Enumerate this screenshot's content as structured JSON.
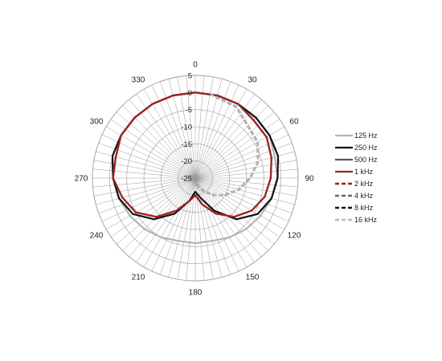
{
  "chart_data": {
    "type": "polar-line",
    "title": "",
    "radial_axis": {
      "range": [
        -25,
        5
      ],
      "ticks": [
        "5",
        "0",
        "-5",
        "-10",
        "-15",
        "-20",
        "-25"
      ],
      "tick_values": [
        5,
        0,
        -5,
        -10,
        -15,
        -20,
        -25
      ]
    },
    "angular_axis": {
      "labels": [
        "0",
        "30",
        "60",
        "90",
        "120",
        "150",
        "180",
        "210",
        "240",
        "270",
        "300",
        "330"
      ],
      "label_angles": [
        0,
        30,
        60,
        90,
        120,
        150,
        180,
        210,
        240,
        270,
        300,
        330
      ],
      "grid_step_deg": 5
    },
    "legend_position": "right",
    "grid": true,
    "series": [
      {
        "name": "125 Hz",
        "color": "#b3b3b3",
        "dash": "solid",
        "width": 2.2,
        "points": [
          [
            0,
            0
          ],
          [
            15,
            0
          ],
          [
            30,
            0
          ],
          [
            45,
            0
          ],
          [
            60,
            0
          ],
          [
            75,
            -1
          ],
          [
            90,
            -1
          ],
          [
            105,
            -2
          ],
          [
            120,
            -3
          ],
          [
            135,
            -4
          ],
          [
            150,
            -5
          ],
          [
            165,
            -6
          ],
          [
            180,
            -6
          ],
          [
            195,
            -6
          ],
          [
            210,
            -5
          ],
          [
            225,
            -4
          ],
          [
            240,
            -3
          ],
          [
            255,
            -2
          ],
          [
            270,
            -1
          ],
          [
            285,
            -1
          ],
          [
            300,
            0
          ],
          [
            315,
            0
          ],
          [
            330,
            0
          ],
          [
            345,
            0
          ],
          [
            360,
            0
          ]
        ]
      },
      {
        "name": "250 Hz",
        "color": "#111111",
        "dash": "solid",
        "width": 2.2,
        "points": [
          [
            0,
            0
          ],
          [
            15,
            0
          ],
          [
            30,
            0
          ],
          [
            45,
            0
          ],
          [
            60,
            0
          ],
          [
            75,
            0
          ],
          [
            90,
            -1
          ],
          [
            105,
            -2
          ],
          [
            120,
            -4
          ],
          [
            135,
            -8
          ],
          [
            150,
            -14
          ],
          [
            165,
            -19
          ],
          [
            180,
            -21
          ],
          [
            195,
            -18
          ],
          [
            210,
            -13
          ],
          [
            225,
            -8
          ],
          [
            240,
            -4
          ],
          [
            255,
            -2
          ],
          [
            270,
            -1
          ],
          [
            285,
            0
          ],
          [
            300,
            0
          ],
          [
            315,
            0
          ],
          [
            330,
            0
          ],
          [
            345,
            0
          ],
          [
            360,
            0
          ]
        ]
      },
      {
        "name": "500 Hz",
        "color": "#555555",
        "dash": "solid",
        "width": 2.2,
        "points": [
          [
            0,
            0
          ],
          [
            15,
            0
          ],
          [
            30,
            0
          ],
          [
            45,
            -1
          ],
          [
            60,
            -1
          ],
          [
            75,
            -2
          ],
          [
            90,
            -3
          ],
          [
            105,
            -4
          ],
          [
            120,
            -6
          ],
          [
            135,
            -9
          ],
          [
            150,
            -13
          ],
          [
            165,
            -17
          ],
          [
            180,
            -20
          ],
          [
            195,
            -18
          ],
          [
            210,
            -14
          ],
          [
            225,
            -9
          ],
          [
            240,
            -5
          ],
          [
            255,
            -3
          ],
          [
            270,
            -1
          ],
          [
            285,
            -1
          ],
          [
            300,
            0
          ],
          [
            315,
            0
          ],
          [
            330,
            0
          ],
          [
            345,
            0
          ],
          [
            360,
            0
          ]
        ]
      },
      {
        "name": "1 kHz",
        "color": "#a31f1f",
        "dash": "solid",
        "width": 2.2,
        "points": [
          [
            0,
            0
          ],
          [
            15,
            0
          ],
          [
            30,
            0
          ],
          [
            45,
            -1
          ],
          [
            60,
            -1
          ],
          [
            75,
            -2
          ],
          [
            90,
            -3
          ],
          [
            105,
            -4
          ],
          [
            120,
            -6
          ],
          [
            135,
            -9
          ],
          [
            150,
            -13
          ],
          [
            165,
            -17
          ],
          [
            180,
            -20
          ],
          [
            195,
            -18
          ],
          [
            210,
            -14
          ],
          [
            225,
            -9
          ],
          [
            240,
            -5
          ],
          [
            255,
            -3
          ],
          [
            270,
            -1
          ],
          [
            285,
            -1
          ],
          [
            300,
            0
          ],
          [
            315,
            0
          ],
          [
            330,
            0
          ],
          [
            345,
            0
          ],
          [
            360,
            0
          ]
        ]
      },
      {
        "name": "2 kHz",
        "color": "#a31f1f",
        "dash": "dash",
        "width": 2.4,
        "points": [
          [
            10,
            0
          ],
          [
            30,
            -1
          ],
          [
            60,
            -4
          ],
          [
            75,
            -6
          ],
          [
            90,
            -9
          ],
          [
            105,
            -12
          ],
          [
            120,
            -15
          ],
          [
            135,
            -18
          ],
          [
            150,
            -21
          ],
          [
            165,
            -23
          ],
          [
            180,
            -24
          ]
        ]
      },
      {
        "name": "4 kHz",
        "color": "#666666",
        "dash": "dash",
        "width": 2.4,
        "points": [
          [
            10,
            0
          ],
          [
            30,
            -1
          ],
          [
            60,
            -4
          ],
          [
            75,
            -6
          ],
          [
            90,
            -9
          ],
          [
            105,
            -12
          ],
          [
            120,
            -15
          ],
          [
            135,
            -18
          ],
          [
            150,
            -21
          ],
          [
            165,
            -23
          ],
          [
            180,
            -24
          ]
        ]
      },
      {
        "name": "8 kHz",
        "color": "#111111",
        "dash": "dash",
        "width": 2.6,
        "points": [
          [
            10,
            0
          ],
          [
            30,
            -1
          ],
          [
            60,
            -4
          ],
          [
            75,
            -6
          ],
          [
            90,
            -9
          ],
          [
            105,
            -12
          ],
          [
            120,
            -15
          ],
          [
            135,
            -18
          ],
          [
            150,
            -21
          ],
          [
            165,
            -23
          ],
          [
            180,
            -24
          ]
        ]
      },
      {
        "name": "16 kHz",
        "color": "#bbbbbb",
        "dash": "dash",
        "width": 2.4,
        "points": [
          [
            10,
            0
          ],
          [
            30,
            -1
          ],
          [
            60,
            -4
          ],
          [
            75,
            -6
          ],
          [
            90,
            -9
          ],
          [
            105,
            -12
          ],
          [
            120,
            -15
          ],
          [
            135,
            -18
          ],
          [
            150,
            -21
          ],
          [
            165,
            -23
          ],
          [
            180,
            -24
          ]
        ]
      }
    ]
  }
}
